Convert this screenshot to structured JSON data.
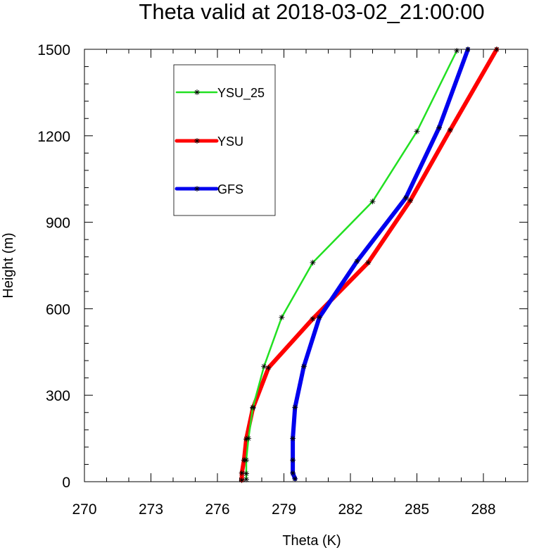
{
  "chart_data": {
    "type": "line",
    "title": "Theta valid at 2018-03-02_21:00:00",
    "xlabel": "Theta (K)",
    "ylabel": "Height (m)",
    "xlim": [
      270,
      290
    ],
    "ylim": [
      0,
      1500
    ],
    "xticks": [
      270,
      273,
      276,
      279,
      282,
      285,
      288
    ],
    "yticks": [
      0,
      300,
      600,
      900,
      1200,
      1500
    ],
    "xtick_labels": [
      "270",
      "273",
      "276",
      "279",
      "282",
      "285",
      "288"
    ],
    "ytick_labels": [
      "0",
      "300",
      "600",
      "900",
      "1200",
      "1500"
    ],
    "grid": false,
    "legend_position": "top-left",
    "series": [
      {
        "name": "YSU_25",
        "color": "#22e022",
        "line_weight": "thin",
        "points": [
          {
            "x": 277.3,
            "y": 8
          },
          {
            "x": 277.3,
            "y": 28
          },
          {
            "x": 277.3,
            "y": 75
          },
          {
            "x": 277.4,
            "y": 150
          },
          {
            "x": 277.6,
            "y": 258
          },
          {
            "x": 278.1,
            "y": 400
          },
          {
            "x": 278.9,
            "y": 570
          },
          {
            "x": 280.3,
            "y": 760
          },
          {
            "x": 283.0,
            "y": 972
          },
          {
            "x": 285.0,
            "y": 1215
          },
          {
            "x": 286.8,
            "y": 1495
          }
        ]
      },
      {
        "name": "YSU",
        "color": "#ff0000",
        "line_weight": "thick",
        "points": [
          {
            "x": 277.1,
            "y": 5
          },
          {
            "x": 277.1,
            "y": 30
          },
          {
            "x": 277.2,
            "y": 75
          },
          {
            "x": 277.3,
            "y": 148
          },
          {
            "x": 277.6,
            "y": 255
          },
          {
            "x": 278.3,
            "y": 395
          },
          {
            "x": 280.3,
            "y": 565
          },
          {
            "x": 282.8,
            "y": 760
          },
          {
            "x": 284.7,
            "y": 975
          },
          {
            "x": 286.5,
            "y": 1220
          },
          {
            "x": 288.6,
            "y": 1500
          }
        ]
      },
      {
        "name": "GFS",
        "color": "#0000ee",
        "line_weight": "thick",
        "points": [
          {
            "x": 279.5,
            "y": 10
          },
          {
            "x": 279.4,
            "y": 30
          },
          {
            "x": 279.4,
            "y": 75
          },
          {
            "x": 279.4,
            "y": 150
          },
          {
            "x": 279.5,
            "y": 258
          },
          {
            "x": 279.9,
            "y": 400
          },
          {
            "x": 280.6,
            "y": 570
          },
          {
            "x": 282.3,
            "y": 765
          },
          {
            "x": 284.5,
            "y": 985
          },
          {
            "x": 286.0,
            "y": 1228
          },
          {
            "x": 287.3,
            "y": 1500
          }
        ]
      }
    ]
  }
}
